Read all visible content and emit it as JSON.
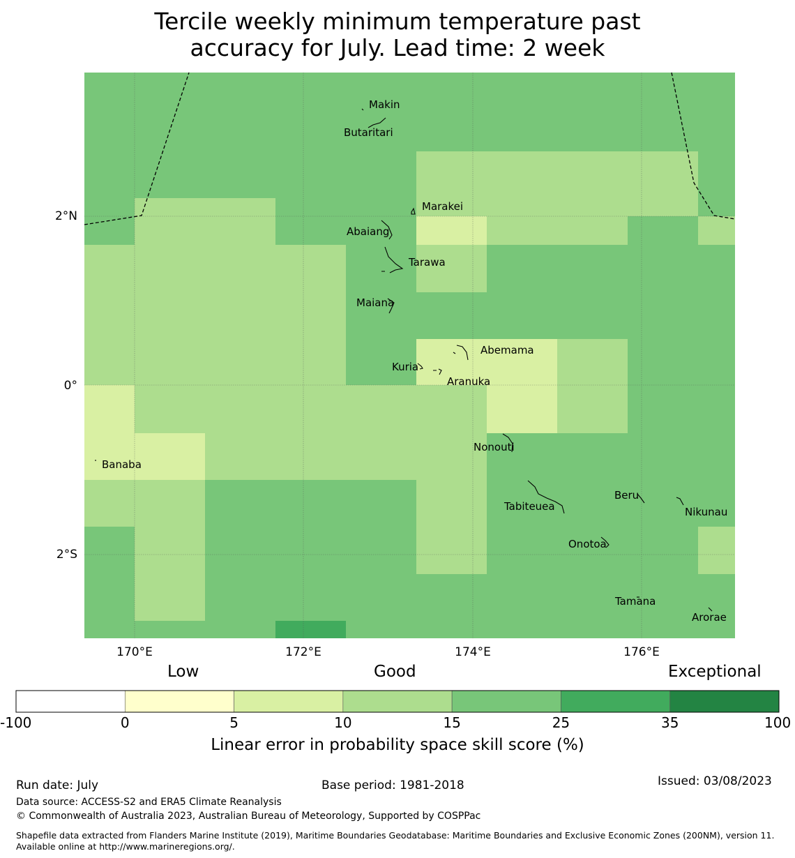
{
  "title_line1": "Tercile weekly minimum temperature past",
  "title_line2": "accuracy for July. Lead time: 2 week",
  "map": {
    "lon_ticks": [
      "170°E",
      "172°E",
      "174°E",
      "176°E"
    ],
    "lat_ticks": [
      "2°N",
      "0°",
      "2°S"
    ],
    "places": [
      "Makin",
      "Butaritari",
      "Marakei",
      "Abaiang",
      "Tarawa",
      "Maiana",
      "Abemama",
      "Kuria",
      "Aranuka",
      "Nonouti",
      "Banaba",
      "Tabiteuea",
      "Beru",
      "Nikunau",
      "Onotoa",
      "Tamana",
      "Arorae"
    ]
  },
  "colorbar": {
    "headings": {
      "low": "Low",
      "good": "Good",
      "exceptional": "Exceptional"
    },
    "ticks": [
      "-100",
      "0",
      "5",
      "10",
      "15",
      "25",
      "35",
      "100"
    ],
    "colors": [
      "#ffffff",
      "#ffffcc",
      "#d9f0a3",
      "#addd8e",
      "#78c679",
      "#41ab5d",
      "#238443"
    ],
    "label": "Linear error in probability space skill score (%)"
  },
  "footer": {
    "run_date": "Run date: July",
    "base_period": "Base period: 1981-2018",
    "issued": "Issued: 03/08/2023",
    "data_source": "Data source: ACCESS-S2 and ERA5 Climate Reanalysis",
    "copyright": "© Commonwealth of Australia 2023, Australian Bureau of Meteorology, Supported by COSPPac",
    "shapefile": "Shapefile data extracted from Flanders Marine Institute (2019), Maritime Boundaries Geodatabase: Maritime Boundaries and Exclusive Economic Zones (200NM), version 11. Available online at http://www.marineregions.org/."
  }
}
